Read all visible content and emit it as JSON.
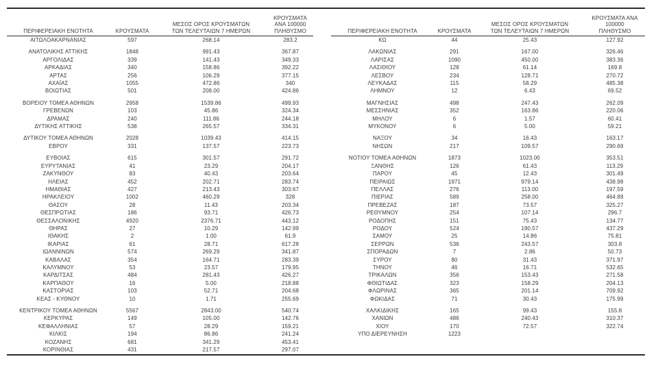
{
  "page": {
    "background": "#ffffff",
    "text_color": "#3a3a3a",
    "line_color": "#2a2a2a"
  },
  "headers": {
    "region": "ΠΕΡΙΦΕΡΕΙΑΚΗ ΕΝΟΤΗΤΑ",
    "cases": "ΚΡΟΥΣΜΑΤΑ",
    "avg7_line1": "ΜΕΣΟΣ ΟΡΟΣ ΚΡΟΥΣΜΑΤΩΝ",
    "avg7_line2": "ΤΩΝ ΤΕΛΕΥΤΑΙΩΝ 7 ΗΜΕΡΩΝ",
    "per100k_line1": "ΚΡΟΥΣΜΑΤΑ ΑΝΑ 100000",
    "per100k_line2": "ΠΛΗΘΥΣΜΟ"
  },
  "left_table": {
    "rows": [
      [
        "ΑΙΤΩΛΟΑΚΑΡΝΑΝΙΑΣ",
        "597",
        "268.14",
        "283.2"
      ],
      null,
      [
        "ΑΝΑΤΟΛΙΚΗΣ ΑΤΤΙΚΗΣ",
        "1848",
        "991.43",
        "367.87"
      ],
      [
        "ΑΡΓΟΛΙΔΑΣ",
        "339",
        "141.43",
        "349.33"
      ],
      [
        "ΑΡΚΑΔΙΑΣ",
        "340",
        "158.86",
        "392.22"
      ],
      [
        "ΑΡΤΑΣ",
        "256",
        "106.29",
        "377.15"
      ],
      [
        "ΑΧΑΪΑΣ",
        "1055",
        "472.86",
        "340"
      ],
      [
        "ΒΟΙΩΤΙΑΣ",
        "501",
        "208.00",
        "424.86"
      ],
      null,
      [
        "ΒΟΡΕΙΟΥ ΤΟΜΕΑ ΑΘΗΝΩΝ",
        "2958",
        "1539.86",
        "499.93"
      ],
      [
        "ΓΡΕΒΕΝΩΝ",
        "103",
        "45.86",
        "324.34"
      ],
      [
        "ΔΡΑΜΑΣ",
        "240",
        "111.86",
        "244.18"
      ],
      [
        "ΔΥΤΙΚΗΣ ΑΤΤΙΚΗΣ",
        "538",
        "265.57",
        "334.31"
      ],
      null,
      [
        "ΔΥΤΙΚΟΥ ΤΟΜΕΑ ΑΘΗΝΩΝ",
        "2028",
        "1039.43",
        "414.15"
      ],
      [
        "ΕΒΡΟΥ",
        "331",
        "137.57",
        "223.73"
      ],
      null,
      [
        "ΕΥΒΟΙΑΣ",
        "615",
        "301.57",
        "291.72"
      ],
      [
        "ΕΥΡΥΤΑΝΙΑΣ",
        "41",
        "23.29",
        "204.17"
      ],
      [
        "ΖΑΚΥΝΘΟΥ",
        "83",
        "40.43",
        "203.64"
      ],
      [
        "ΗΛΕΙΑΣ",
        "452",
        "202.71",
        "283.74"
      ],
      [
        "ΗΜΑΘΙΑΣ",
        "427",
        "213.43",
        "303.67"
      ],
      [
        "ΗΡΑΚΛΕΙΟΥ",
        "1002",
        "460.29",
        "328"
      ],
      [
        "ΘΑΣΟΥ",
        "28",
        "11.43",
        "203.34"
      ],
      [
        "ΘΕΣΠΡΩΤΙΑΣ",
        "186",
        "93.71",
        "426.73"
      ],
      [
        "ΘΕΣΣΑΛΟΝΙΚΗΣ",
        "4920",
        "2376.71",
        "443.12"
      ],
      [
        "ΘΗΡΑΣ",
        "27",
        "10.29",
        "142.99"
      ],
      [
        "ΙΘΑΚΗΣ",
        "2",
        "1.00",
        "61.9"
      ],
      [
        "ΙΚΑΡΙΑΣ",
        "61",
        "28.71",
        "617.28"
      ],
      [
        "ΙΩΑΝΝΙΝΩΝ",
        "574",
        "269.29",
        "341.87"
      ],
      [
        "ΚΑΒΑΛΑΣ",
        "354",
        "164.71",
        "283.39"
      ],
      [
        "ΚΑΛΥΜΝΟΥ",
        "53",
        "23.57",
        "179.95"
      ],
      [
        "ΚΑΡΔΙΤΣΑΣ",
        "484",
        "281.43",
        "426.27"
      ],
      [
        "ΚΑΡΠΑΘΟΥ",
        "16",
        "5.00",
        "218.88"
      ],
      [
        "ΚΑΣΤΟΡΙΑΣ",
        "103",
        "52.71",
        "204.68"
      ],
      [
        "ΚΕΑΣ - ΚΥΘΝΟΥ",
        "10",
        "1.71",
        "255.69"
      ],
      null,
      [
        "ΚΕΝΤΡΙΚΟΥ ΤΟΜΕΑ ΑΘΗΝΩΝ",
        "5567",
        "2843.00",
        "540.74"
      ],
      [
        "ΚΕΡΚΥΡΑΣ",
        "149",
        "105.00",
        "142.76"
      ],
      [
        "ΚΕΦΑΛΛΗΝΙΑΣ",
        "57",
        "28.29",
        "159.21"
      ],
      [
        "ΚΙΛΚΙΣ",
        "194",
        "86.86",
        "241.24"
      ],
      [
        "ΚΟΖΑΝΗΣ",
        "681",
        "341.29",
        "453.41"
      ],
      [
        "ΚΟΡΙΝΘΙΑΣ",
        "431",
        "217.57",
        "297.07"
      ]
    ]
  },
  "right_table": {
    "rows": [
      [
        "ΚΩ",
        "44",
        "25.43",
        "127.92"
      ],
      null,
      [
        "ΛΑΚΩΝΙΑΣ",
        "291",
        "167.00",
        "326.46"
      ],
      [
        "ΛΑΡΙΣΑΣ",
        "1090",
        "450.00",
        "383.36"
      ],
      [
        "ΛΑΣΙΘΙΟΥ",
        "128",
        "61.14",
        "169.8"
      ],
      [
        "ΛΕΣΒΟΥ",
        "234",
        "128.71",
        "270.72"
      ],
      [
        "ΛΕΥΚΑΔΑΣ",
        "115",
        "58.29",
        "485.38"
      ],
      [
        "ΛΗΜΝΟΥ",
        "12",
        "6.43",
        "69.52"
      ],
      null,
      [
        "ΜΑΓΝΗΣΙΑΣ",
        "498",
        "247.43",
        "262.09"
      ],
      [
        "ΜΕΣΣΗΝΙΑΣ",
        "352",
        "163.86",
        "220.06"
      ],
      [
        "ΜΗΛΟΥ",
        "6",
        "1.57",
        "60.41"
      ],
      [
        "ΜΥΚΟΝΟΥ",
        "6",
        "5.00",
        "59.21"
      ],
      null,
      [
        "ΝΑΞΟΥ",
        "34",
        "16.43",
        "163.17"
      ],
      [
        "ΝΗΣΩΝ",
        "217",
        "109.57",
        "290.69"
      ],
      null,
      [
        "ΝΟΤΙΟΥ ΤΟΜΕΑ ΑΘΗΝΩΝ",
        "1873",
        "1023.00",
        "353.51"
      ],
      [
        "ΞΑΝΘΗΣ",
        "126",
        "61.43",
        "113.29"
      ],
      [
        "ΠΑΡΟΥ",
        "45",
        "12.43",
        "301.49"
      ],
      [
        "ΠΕΙΡΑΙΩΣ",
        "1971",
        "979.14",
        "438.98"
      ],
      [
        "ΠΕΛΛΑΣ",
        "276",
        "113.00",
        "197.59"
      ],
      [
        "ΠΙΕΡΙΑΣ",
        "589",
        "258.00",
        "464.89"
      ],
      [
        "ΠΡΕΒΕΖΑΣ",
        "187",
        "73.57",
        "325.27"
      ],
      [
        "ΡΕΘΥΜΝΟΥ",
        "254",
        "107.14",
        "296.7"
      ],
      [
        "ΡΟΔΟΠΗΣ",
        "151",
        "75.43",
        "134.77"
      ],
      [
        "ΡΟΔΟΥ",
        "524",
        "190.57",
        "437.29"
      ],
      [
        "ΣΑΜΟΥ",
        "25",
        "14.86",
        "75.81"
      ],
      [
        "ΣΕΡΡΩΝ",
        "536",
        "243.57",
        "303.8"
      ],
      [
        "ΣΠΟΡΑΔΩΝ",
        "7",
        "2.86",
        "50.73"
      ],
      [
        "ΣΥΡΟΥ",
        "80",
        "31.43",
        "371.97"
      ],
      [
        "ΤΗΝΟΥ",
        "46",
        "16.71",
        "532.65"
      ],
      [
        "ΤΡΙΚΑΛΩΝ",
        "356",
        "153.43",
        "271.58"
      ],
      [
        "ΦΘΙΩΤΙΔΑΣ",
        "323",
        "158.29",
        "204.13"
      ],
      [
        "ΦΛΩΡΙΝΑΣ",
        "365",
        "201.14",
        "709.92"
      ],
      [
        "ΦΩΚΙΔΑΣ",
        "71",
        "30.43",
        "175.99"
      ],
      null,
      [
        "ΧΑΛΚΙΔΙΚΗΣ",
        "165",
        "99.43",
        "155.8"
      ],
      [
        "ΧΑΝΙΩΝ",
        "486",
        "240.43",
        "310.37"
      ],
      [
        "ΧΙΟΥ",
        "170",
        "72.57",
        "322.74"
      ],
      [
        "ΥΠΟ ΔΙΕΡΕΥΝΗΣΗ",
        "1223",
        "",
        ""
      ]
    ]
  }
}
